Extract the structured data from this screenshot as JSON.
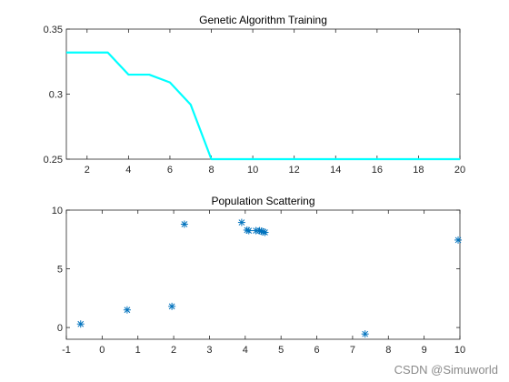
{
  "chart_data": [
    {
      "type": "line",
      "title": "Genetic Algorithm Training",
      "xlabel": "",
      "ylabel": "",
      "xlim": [
        1,
        20
      ],
      "ylim": [
        0.25,
        0.35
      ],
      "xticks": [
        2,
        4,
        6,
        8,
        10,
        12,
        14,
        16,
        18,
        20
      ],
      "yticks": [
        0.25,
        0.3,
        0.35
      ],
      "ytick_labels": [
        "0.25",
        "0.3",
        "0.35"
      ],
      "grid": false,
      "line_color": "#00ffff",
      "series": [
        {
          "x": [
            1,
            2,
            3,
            4,
            5,
            6,
            7,
            8,
            9,
            10,
            11,
            12,
            13,
            14,
            15,
            16,
            17,
            18,
            19,
            20
          ],
          "values": [
            0.332,
            0.332,
            0.332,
            0.315,
            0.315,
            0.309,
            0.292,
            0.25,
            0.25,
            0.25,
            0.25,
            0.25,
            0.25,
            0.25,
            0.25,
            0.25,
            0.25,
            0.25,
            0.25,
            0.25
          ]
        }
      ]
    },
    {
      "type": "scatter",
      "title": "Population Scattering",
      "xlabel": "",
      "ylabel": "",
      "xlim": [
        -1,
        10
      ],
      "ylim": [
        -1,
        10
      ],
      "xticks": [
        -1,
        0,
        1,
        2,
        3,
        4,
        5,
        6,
        7,
        8,
        9,
        10
      ],
      "yticks": [
        0,
        5,
        10
      ],
      "ytick_labels": [
        "0",
        "5",
        "10"
      ],
      "grid": false,
      "marker": "asterisk",
      "marker_color": "#0072bd",
      "series": [
        {
          "points": [
            [
              -0.6,
              0.3
            ],
            [
              0.7,
              1.5
            ],
            [
              1.95,
              1.8
            ],
            [
              2.3,
              8.8
            ],
            [
              3.9,
              8.95
            ],
            [
              4.05,
              8.3
            ],
            [
              4.1,
              8.25
            ],
            [
              4.3,
              8.25
            ],
            [
              4.4,
              8.25
            ],
            [
              4.45,
              8.2
            ],
            [
              4.5,
              8.15
            ],
            [
              4.55,
              8.1
            ],
            [
              7.35,
              -0.55
            ],
            [
              9.95,
              7.45
            ]
          ]
        }
      ]
    }
  ],
  "watermark": "CSDN @Simuworld"
}
